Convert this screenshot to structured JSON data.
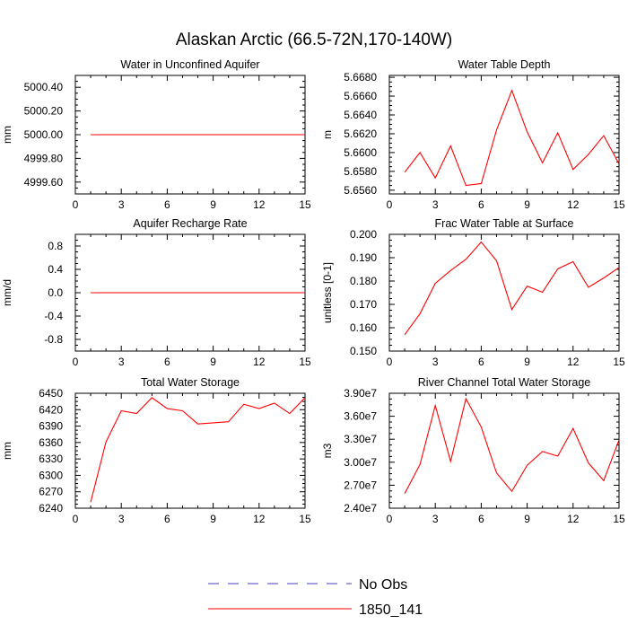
{
  "figure": {
    "title": "Alaskan Arctic (66.5-72N,170-140W)"
  },
  "legend": {
    "entries": [
      {
        "label": "No Obs",
        "color": "#4040c0",
        "style": "dashed"
      },
      {
        "label": "1850_141",
        "color": "#ff0000",
        "style": "solid"
      }
    ]
  },
  "chart_data": [
    {
      "type": "line",
      "title": "Water in Unconfined Aquifer",
      "ylabel": "mm",
      "xlim": [
        0,
        15
      ],
      "ylim": [
        4999.5,
        5000.5
      ],
      "xticks": [
        0,
        3,
        6,
        9,
        12,
        15
      ],
      "yticks": [
        4999.6,
        4999.8,
        5000.0,
        5000.2,
        5000.4
      ],
      "ytick_labels": [
        "4999.60",
        "4999.80",
        "5000.00",
        "5000.20",
        "5000.40"
      ],
      "x": [
        1,
        15
      ],
      "series": [
        {
          "name": "1850_141",
          "color": "#ff0000",
          "values": [
            5000.0,
            5000.0
          ],
          "extend_to_edge": true
        }
      ]
    },
    {
      "type": "line",
      "title": "Water Table Depth",
      "ylabel": "m",
      "xlim": [
        0,
        15
      ],
      "ylim": [
        5.6556,
        5.6682
      ],
      "xticks": [
        0,
        3,
        6,
        9,
        12,
        15
      ],
      "yticks": [
        5.656,
        5.658,
        5.66,
        5.662,
        5.664,
        5.666,
        5.668
      ],
      "ytick_labels": [
        "5.6560",
        "5.6580",
        "5.6600",
        "5.6620",
        "5.6640",
        "5.6660",
        "5.6680"
      ],
      "x": [
        1,
        2,
        3,
        4,
        5,
        6,
        7,
        8,
        9,
        10,
        11,
        12,
        13,
        14,
        15
      ],
      "series": [
        {
          "name": "1850_141",
          "color": "#ff0000",
          "values": [
            5.6579,
            5.66,
            5.6573,
            5.6607,
            5.6565,
            5.6567,
            5.6624,
            5.6666,
            5.6622,
            5.6589,
            5.6621,
            5.6582,
            5.6598,
            5.6618,
            5.6588
          ]
        }
      ]
    },
    {
      "type": "line",
      "title": "Aquifer Recharge Rate",
      "ylabel": "mm/d",
      "xlim": [
        0,
        15
      ],
      "ylim": [
        -1.0,
        1.0
      ],
      "xticks": [
        0,
        3,
        6,
        9,
        12,
        15
      ],
      "yticks": [
        -0.8,
        -0.4,
        0.0,
        0.4,
        0.8
      ],
      "ytick_labels": [
        "-0.8",
        "-0.4",
        "0.0",
        "0.4",
        "0.8"
      ],
      "x": [
        1,
        15
      ],
      "series": [
        {
          "name": "1850_141",
          "color": "#ff0000",
          "values": [
            0.0,
            0.0
          ],
          "extend_to_edge": true
        }
      ]
    },
    {
      "type": "line",
      "title": "Frac Water Table at Surface",
      "ylabel": "unitless [0-1]",
      "xlim": [
        0,
        15
      ],
      "ylim": [
        0.15,
        0.2
      ],
      "xticks": [
        0,
        3,
        6,
        9,
        12,
        15
      ],
      "yticks": [
        0.15,
        0.16,
        0.17,
        0.18,
        0.19,
        0.2
      ],
      "ytick_labels": [
        "0.150",
        "0.160",
        "0.170",
        "0.180",
        "0.190",
        "0.200"
      ],
      "x": [
        1,
        2,
        3,
        4,
        5,
        6,
        7,
        8,
        9,
        10,
        11,
        12,
        13,
        14,
        15
      ],
      "series": [
        {
          "name": "1850_141",
          "color": "#ff0000",
          "values": [
            0.157,
            0.166,
            0.179,
            0.1845,
            0.1893,
            0.1967,
            0.1887,
            0.1678,
            0.1778,
            0.1752,
            0.1852,
            0.1883,
            0.1773,
            0.1813,
            0.1858
          ]
        }
      ]
    },
    {
      "type": "line",
      "title": "Total Water Storage",
      "ylabel": "mm",
      "xlim": [
        0,
        15
      ],
      "ylim": [
        6240,
        6450
      ],
      "xticks": [
        0,
        3,
        6,
        9,
        12,
        15
      ],
      "yticks": [
        6240,
        6270,
        6300,
        6330,
        6360,
        6390,
        6420,
        6450
      ],
      "ytick_labels": [
        "6240",
        "6270",
        "6300",
        "6330",
        "6360",
        "6390",
        "6420",
        "6450"
      ],
      "x": [
        1,
        2,
        3,
        4,
        5,
        6,
        7,
        8,
        9,
        10,
        11,
        12,
        13,
        14,
        15
      ],
      "series": [
        {
          "name": "1850_141",
          "color": "#ff0000",
          "values": [
            6251,
            6361,
            6418,
            6413,
            6442,
            6422,
            6418,
            6394,
            6396,
            6398,
            6430,
            6422,
            6432,
            6413,
            6442
          ]
        }
      ]
    },
    {
      "type": "line",
      "title": "River Channel Total Water Storage",
      "ylabel": "m3",
      "xlim": [
        0,
        15
      ],
      "ylim": [
        24000000,
        39000000
      ],
      "xticks": [
        0,
        3,
        6,
        9,
        12,
        15
      ],
      "yticks": [
        24000000,
        27000000,
        30000000,
        33000000,
        36000000,
        39000000
      ],
      "ytick_labels": [
        "2.40e7",
        "2.70e7",
        "3.00e7",
        "3.30e7",
        "3.60e7",
        "3.90e7"
      ],
      "x": [
        1,
        2,
        3,
        4,
        5,
        6,
        7,
        8,
        9,
        10,
        11,
        12,
        13,
        14,
        15
      ],
      "series": [
        {
          "name": "1850_141",
          "color": "#ff0000",
          "values": [
            25900000,
            29700000,
            37400000,
            30100000,
            38300000,
            34600000,
            28600000,
            26200000,
            29600000,
            31400000,
            30800000,
            34400000,
            29900000,
            27600000,
            32900000
          ]
        }
      ]
    }
  ]
}
